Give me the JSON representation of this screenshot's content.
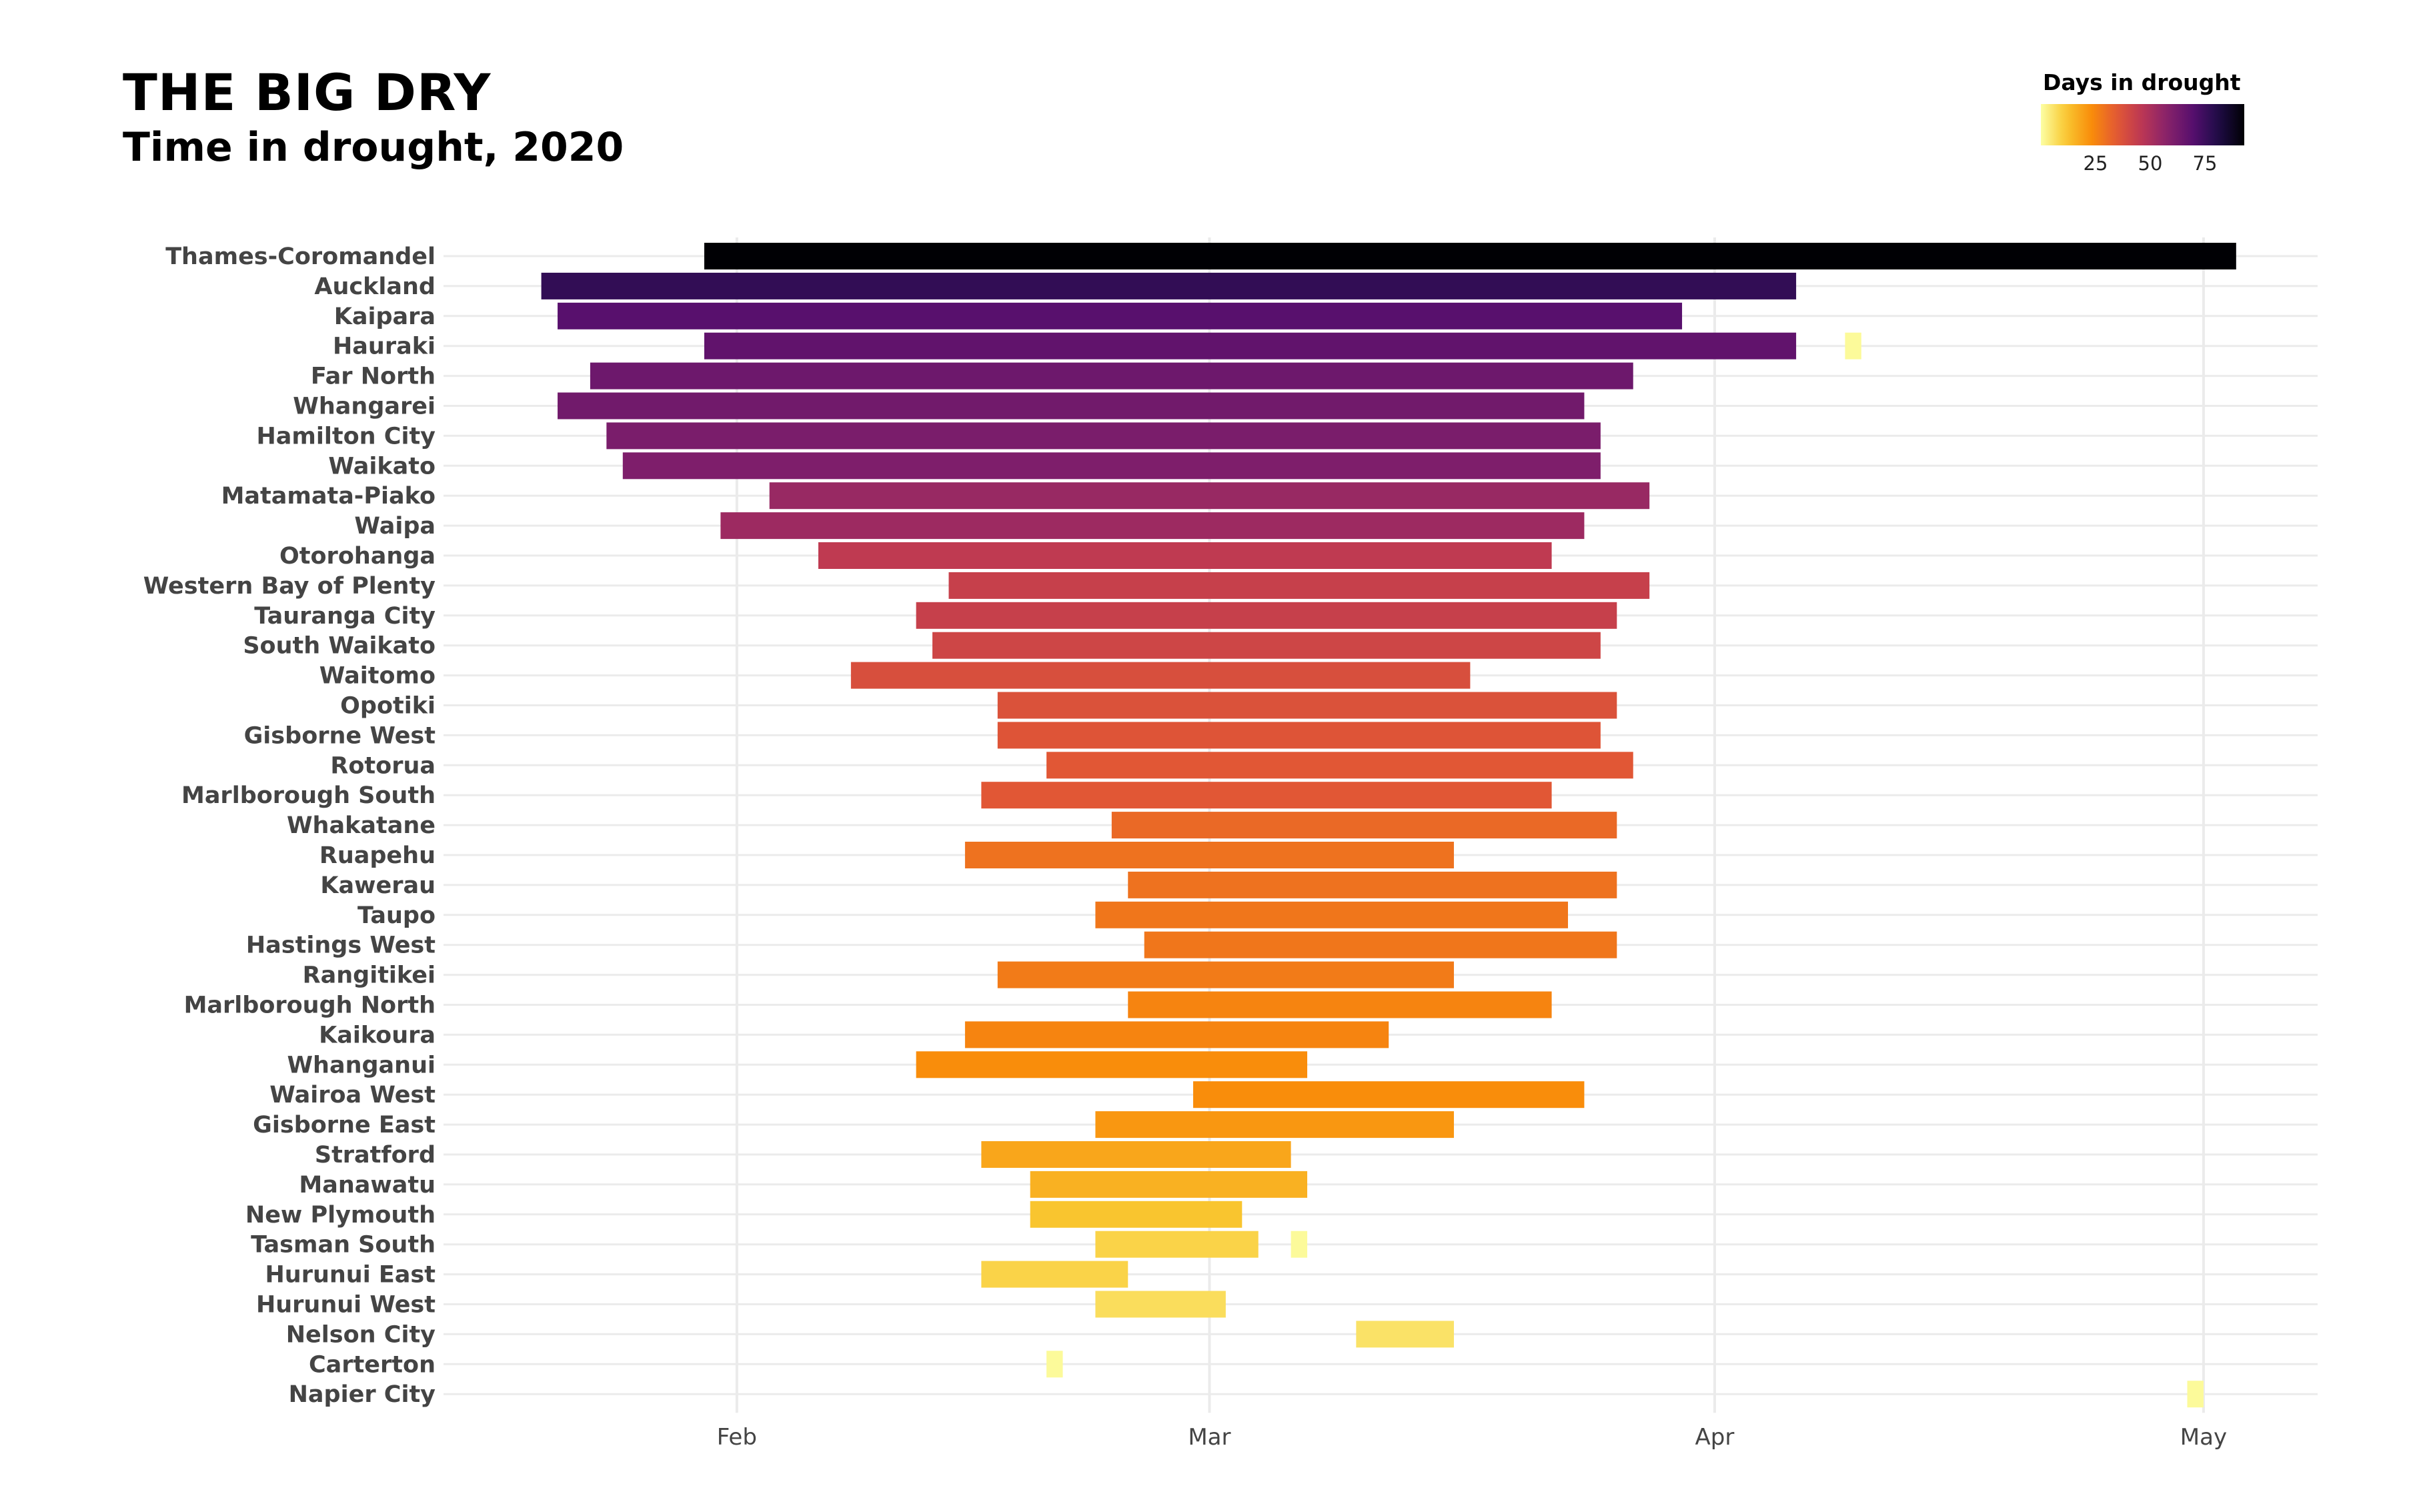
{
  "header": {
    "title": "THE BIG DRY",
    "subtitle": "Time in drought, 2020"
  },
  "legend": {
    "title": "Days in drought",
    "ticks": [
      "25",
      "50",
      "75"
    ],
    "tick_values": [
      25,
      50,
      75
    ],
    "range": [
      0,
      93
    ],
    "palette": "inferno (reversed)"
  },
  "chart_data": {
    "type": "bar",
    "orientation": "horizontal range (gantt)",
    "title": "THE BIG DRY",
    "subtitle": "Time in drought, 2020",
    "xlabel": "",
    "ylabel": "",
    "x_ticks": [
      "Feb",
      "Mar",
      "Apr",
      "May"
    ],
    "x_tick_dates": [
      "2020-02-01",
      "2020-03-01",
      "2020-04-01",
      "2020-05-01"
    ],
    "xlim": [
      "2020-01-14",
      "2020-05-08"
    ],
    "grid": true,
    "legend_position": "top-right",
    "color_scale": {
      "name": "Days in drought",
      "min": 0,
      "max": 93
    },
    "categories": [
      "Thames-Coromandel",
      "Auckland",
      "Kaipara",
      "Hauraki",
      "Far North",
      "Whangarei",
      "Hamilton City",
      "Waikato",
      "Matamata-Piako",
      "Waipa",
      "Otorohanga",
      "Western Bay of Plenty",
      "Tauranga City",
      "South Waikato",
      "Waitomo",
      "Opotiki",
      "Gisborne West",
      "Rotorua",
      "Marlborough South",
      "Whakatane",
      "Ruapehu",
      "Kawerau",
      "Taupo",
      "Hastings West",
      "Rangitikei",
      "Marlborough North",
      "Kaikoura",
      "Whanganui",
      "Wairoa West",
      "Gisborne East",
      "Stratford",
      "Manawatu",
      "New Plymouth",
      "Tasman South",
      "Hurunui East",
      "Hurunui West",
      "Nelson City",
      "Carterton",
      "Napier City"
    ],
    "intervals": [
      {
        "region": "Thames-Coromandel",
        "start": "2020-01-30",
        "end": "2020-05-03",
        "days": 94
      },
      {
        "region": "Auckland",
        "start": "2020-01-20",
        "end": "2020-04-06",
        "days": 77
      },
      {
        "region": "Kaipara",
        "start": "2020-01-21",
        "end": "2020-03-30",
        "days": 69
      },
      {
        "region": "Hauraki",
        "start": "2020-01-30",
        "end": "2020-04-06",
        "days": 67
      },
      {
        "region": "Hauraki",
        "start": "2020-04-09",
        "end": "2020-04-10",
        "days": 1
      },
      {
        "region": "Far North",
        "start": "2020-01-23",
        "end": "2020-03-27",
        "days": 64
      },
      {
        "region": "Whangarei",
        "start": "2020-01-21",
        "end": "2020-03-24",
        "days": 63
      },
      {
        "region": "Hamilton City",
        "start": "2020-01-24",
        "end": "2020-03-25",
        "days": 61
      },
      {
        "region": "Waikato",
        "start": "2020-01-25",
        "end": "2020-03-25",
        "days": 60
      },
      {
        "region": "Matamata-Piako",
        "start": "2020-02-03",
        "end": "2020-03-28",
        "days": 54
      },
      {
        "region": "Waipa",
        "start": "2020-01-31",
        "end": "2020-03-24",
        "days": 53
      },
      {
        "region": "Otorohanga",
        "start": "2020-02-06",
        "end": "2020-03-22",
        "days": 45
      },
      {
        "region": "Western Bay of Plenty",
        "start": "2020-02-14",
        "end": "2020-03-28",
        "days": 43
      },
      {
        "region": "Tauranga City",
        "start": "2020-02-12",
        "end": "2020-03-26",
        "days": 43
      },
      {
        "region": "South Waikato",
        "start": "2020-02-13",
        "end": "2020-03-25",
        "days": 41
      },
      {
        "region": "Waitomo",
        "start": "2020-02-08",
        "end": "2020-03-17",
        "days": 38
      },
      {
        "region": "Opotiki",
        "start": "2020-02-17",
        "end": "2020-03-26",
        "days": 37
      },
      {
        "region": "Gisborne West",
        "start": "2020-02-17",
        "end": "2020-03-25",
        "days": 36
      },
      {
        "region": "Rotorua",
        "start": "2020-02-20",
        "end": "2020-03-27",
        "days": 35
      },
      {
        "region": "Marlborough South",
        "start": "2020-02-16",
        "end": "2020-03-22",
        "days": 35
      },
      {
        "region": "Whakatane",
        "start": "2020-02-24",
        "end": "2020-03-26",
        "days": 31
      },
      {
        "region": "Ruapehu",
        "start": "2020-02-15",
        "end": "2020-03-16",
        "days": 29
      },
      {
        "region": "Kawerau",
        "start": "2020-02-25",
        "end": "2020-03-26",
        "days": 29
      },
      {
        "region": "Taupo",
        "start": "2020-02-23",
        "end": "2020-03-23",
        "days": 28
      },
      {
        "region": "Hastings West",
        "start": "2020-02-26",
        "end": "2020-03-26",
        "days": 28
      },
      {
        "region": "Rangitikei",
        "start": "2020-02-17",
        "end": "2020-03-16",
        "days": 27
      },
      {
        "region": "Marlborough North",
        "start": "2020-02-25",
        "end": "2020-03-22",
        "days": 25
      },
      {
        "region": "Kaikoura",
        "start": "2020-02-15",
        "end": "2020-03-12",
        "days": 25
      },
      {
        "region": "Whanganui",
        "start": "2020-02-12",
        "end": "2020-03-07",
        "days": 23
      },
      {
        "region": "Wairoa West",
        "start": "2020-02-29",
        "end": "2020-03-24",
        "days": 23
      },
      {
        "region": "Gisborne East",
        "start": "2020-02-23",
        "end": "2020-03-16",
        "days": 21
      },
      {
        "region": "Stratford",
        "start": "2020-02-16",
        "end": "2020-03-06",
        "days": 18
      },
      {
        "region": "Manawatu",
        "start": "2020-02-19",
        "end": "2020-03-07",
        "days": 16
      },
      {
        "region": "New Plymouth",
        "start": "2020-02-19",
        "end": "2020-03-03",
        "days": 12
      },
      {
        "region": "Tasman South",
        "start": "2020-02-23",
        "end": "2020-03-04",
        "days": 9
      },
      {
        "region": "Tasman South",
        "start": "2020-03-06",
        "end": "2020-03-07",
        "days": 1
      },
      {
        "region": "Hurunui East",
        "start": "2020-02-16",
        "end": "2020-02-25",
        "days": 9
      },
      {
        "region": "Hurunui West",
        "start": "2020-02-23",
        "end": "2020-03-02",
        "days": 7
      },
      {
        "region": "Nelson City",
        "start": "2020-03-10",
        "end": "2020-03-16",
        "days": 6
      },
      {
        "region": "Carterton",
        "start": "2020-02-20",
        "end": "2020-02-21",
        "days": 1
      },
      {
        "region": "Napier City",
        "start": "2020-04-30",
        "end": "2020-05-01",
        "days": 1
      }
    ]
  }
}
